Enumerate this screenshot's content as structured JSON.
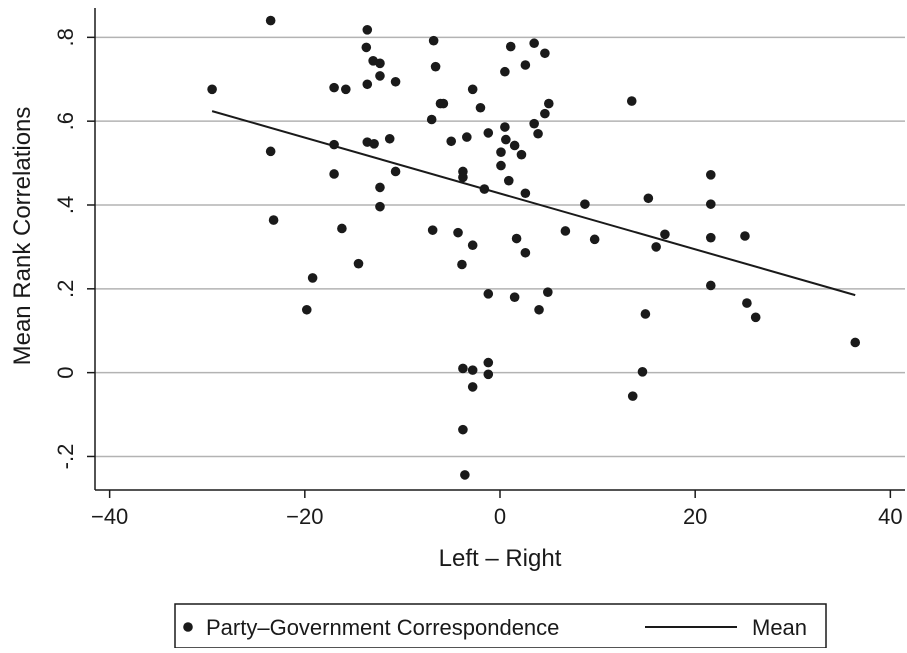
{
  "chart_data": {
    "type": "scatter",
    "xlabel": "Left – Right",
    "ylabel": "Mean Rank Correlations",
    "xlim": [
      -41.5,
      41.5
    ],
    "ylim": [
      -0.28,
      0.87
    ],
    "x_ticks": [
      -40,
      -20,
      0,
      20,
      40
    ],
    "x_tick_labels": [
      "−40",
      "−20",
      "0",
      "20",
      "40"
    ],
    "y_ticks": [
      -0.2,
      0,
      0.2,
      0.4,
      0.6,
      0.8
    ],
    "y_tick_labels": [
      "-.2",
      "0",
      ".2",
      ".4",
      ".6",
      ".8"
    ],
    "grid": "horizontal",
    "legend_position": "bottom",
    "colors": {
      "points": "#1a1a1a",
      "line": "#1a1a1a",
      "grid": "#b3b3b3",
      "axis": "#1a1a1a"
    },
    "series": [
      {
        "name": "Party–Government Correspondence",
        "kind": "scatter",
        "points": [
          [
            -29.5,
            0.676
          ],
          [
            -23.5,
            0.84
          ],
          [
            -23.5,
            0.528
          ],
          [
            -23.2,
            0.364
          ],
          [
            -19.8,
            0.15
          ],
          [
            -19.2,
            0.226
          ],
          [
            -17,
            0.68
          ],
          [
            -17,
            0.544
          ],
          [
            -17,
            0.474
          ],
          [
            -16.2,
            0.344
          ],
          [
            -15.8,
            0.676
          ],
          [
            -14.5,
            0.26
          ],
          [
            -13.6,
            0.818
          ],
          [
            -13.7,
            0.776
          ],
          [
            -13.6,
            0.688
          ],
          [
            -13.6,
            0.55
          ],
          [
            -13,
            0.744
          ],
          [
            -12.9,
            0.546
          ],
          [
            -12.3,
            0.738
          ],
          [
            -12.3,
            0.708
          ],
          [
            -12.3,
            0.442
          ],
          [
            -12.3,
            0.396
          ],
          [
            -11.3,
            0.558
          ],
          [
            -10.7,
            0.694
          ],
          [
            -10.7,
            0.48
          ],
          [
            -6.8,
            0.792
          ],
          [
            -6.6,
            0.73
          ],
          [
            -6.1,
            0.642
          ],
          [
            -5.8,
            0.642
          ],
          [
            -7,
            0.604
          ],
          [
            -6.9,
            0.34
          ],
          [
            -5,
            0.552
          ],
          [
            -4.3,
            0.334
          ],
          [
            -3.8,
            0.48
          ],
          [
            -3.8,
            0.466
          ],
          [
            -3.4,
            0.562
          ],
          [
            -2.8,
            0.676
          ],
          [
            -2.8,
            0.304
          ],
          [
            -2,
            0.632
          ],
          [
            -1.6,
            0.438
          ],
          [
            -1.2,
            0.572
          ],
          [
            -3.9,
            0.258
          ],
          [
            -1.2,
            0.188
          ],
          [
            -3.8,
            0.01
          ],
          [
            -2.8,
            0.006
          ],
          [
            -1.2,
            0.024
          ],
          [
            -1.2,
            -0.004
          ],
          [
            -2.8,
            -0.034
          ],
          [
            -3.8,
            -0.136
          ],
          [
            -3.6,
            -0.244
          ],
          [
            0.1,
            0.526
          ],
          [
            0.1,
            0.494
          ],
          [
            0.5,
            0.586
          ],
          [
            0.6,
            0.556
          ],
          [
            0.5,
            0.718
          ],
          [
            0.9,
            0.458
          ],
          [
            1.1,
            0.778
          ],
          [
            1.5,
            0.542
          ],
          [
            1.7,
            0.32
          ],
          [
            2.2,
            0.52
          ],
          [
            2.6,
            0.734
          ],
          [
            2.6,
            0.428
          ],
          [
            2.6,
            0.286
          ],
          [
            3.5,
            0.786
          ],
          [
            3.5,
            0.594
          ],
          [
            3.9,
            0.57
          ],
          [
            4.6,
            0.762
          ],
          [
            4.6,
            0.618
          ],
          [
            5,
            0.642
          ],
          [
            1.5,
            0.18
          ],
          [
            4,
            0.15
          ],
          [
            4.9,
            0.192
          ],
          [
            6.7,
            0.338
          ],
          [
            8.7,
            0.402
          ],
          [
            9.7,
            0.318
          ],
          [
            13.5,
            0.648
          ],
          [
            15.2,
            0.416
          ],
          [
            14.9,
            0.14
          ],
          [
            14.6,
            0.002
          ],
          [
            13.6,
            -0.056
          ],
          [
            16,
            0.3
          ],
          [
            16.9,
            0.33
          ],
          [
            21.6,
            0.472
          ],
          [
            21.6,
            0.402
          ],
          [
            21.6,
            0.322
          ],
          [
            21.6,
            0.208
          ],
          [
            25.1,
            0.326
          ],
          [
            25.3,
            0.166
          ],
          [
            26.2,
            0.132
          ],
          [
            36.4,
            0.072
          ]
        ]
      },
      {
        "name": "Mean",
        "kind": "line",
        "points": [
          [
            -29.5,
            0.624
          ],
          [
            36.4,
            0.185
          ]
        ]
      }
    ]
  }
}
